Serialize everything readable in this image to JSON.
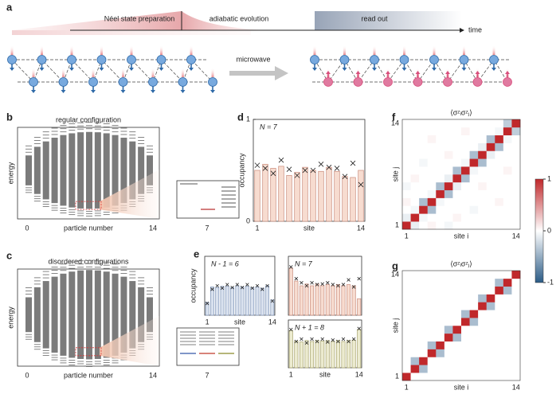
{
  "labels": [
    "a",
    "b",
    "c",
    "d",
    "e",
    "f",
    "g"
  ],
  "timeline": {
    "stages": [
      "Néel state preparation",
      "adiabatic evolution",
      "read out"
    ],
    "axis": "time"
  },
  "microwave": "microwave",
  "spectra": [
    {
      "title": "regular configuration",
      "ylabel": "energy",
      "xlabel": "particle number",
      "xticks": [
        0,
        14
      ],
      "inset_tick": 7
    },
    {
      "title": "disordered configurations",
      "ylabel": "energy",
      "xlabel": "particle number",
      "xticks": [
        0,
        14
      ],
      "inset_tick": 7
    }
  ],
  "chart_data": [
    {
      "type": "bar",
      "label": "N = 7",
      "ylabel": "occupancy",
      "xlabel": "site",
      "ylim": [
        0,
        1
      ],
      "yticks": [
        0,
        1
      ],
      "categories": [
        "1",
        null,
        null,
        null,
        null,
        null,
        null,
        null,
        null,
        null,
        null,
        null,
        null,
        "14"
      ],
      "values": [
        0.5,
        0.56,
        0.52,
        0.54,
        0.45,
        0.48,
        0.53,
        0.5,
        0.49,
        0.53,
        0.49,
        0.44,
        0.43,
        0.5
      ],
      "cross_values": [
        0.55,
        0.52,
        0.47,
        0.6,
        0.51,
        0.45,
        0.5,
        0.5,
        0.56,
        0.53,
        0.52,
        0.44,
        0.57,
        0.36
      ],
      "color": "#f7dcd0",
      "stroke": "#c98a7a"
    },
    {
      "type": "bar",
      "label": "N - 1 = 6",
      "ylabel": "occupancy",
      "xlabel": "site",
      "ylim": [
        0,
        1
      ],
      "categories": [
        "1",
        null,
        null,
        null,
        null,
        null,
        null,
        null,
        null,
        null,
        null,
        null,
        null,
        "14"
      ],
      "values": [
        0.22,
        0.48,
        0.47,
        0.49,
        0.49,
        0.47,
        0.5,
        0.48,
        0.49,
        0.47,
        0.48,
        0.46,
        0.5,
        0.26
      ],
      "cross_values": [
        0.2,
        0.44,
        0.5,
        0.46,
        0.52,
        0.47,
        0.52,
        0.47,
        0.52,
        0.46,
        0.5,
        0.44,
        0.5,
        0.24
      ],
      "color": "#d9e1ee",
      "stroke": "#7f95b8"
    },
    {
      "type": "bar",
      "label": "N = 7",
      "xlabel": null,
      "ylim": [
        0,
        1
      ],
      "categories": [
        null,
        null,
        null,
        null,
        null,
        null,
        null,
        null,
        null,
        null,
        null,
        null,
        null,
        null
      ],
      "values": [
        0.8,
        0.58,
        0.5,
        0.53,
        0.5,
        0.53,
        0.5,
        0.52,
        0.5,
        0.52,
        0.5,
        0.52,
        0.5,
        0.28
      ],
      "cross_values": [
        0.82,
        0.62,
        0.55,
        0.5,
        0.55,
        0.52,
        0.53,
        0.55,
        0.52,
        0.5,
        0.52,
        0.6,
        0.48,
        0.62
      ],
      "color": "#f7dcd0",
      "stroke": "#c98a7a"
    },
    {
      "type": "bar",
      "label": "N + 1 = 8",
      "xlabel": "site",
      "ylim": [
        0,
        1
      ],
      "categories": [
        "1",
        null,
        null,
        null,
        null,
        null,
        null,
        null,
        null,
        null,
        null,
        null,
        null,
        "14"
      ],
      "values": [
        0.78,
        0.56,
        0.54,
        0.57,
        0.55,
        0.57,
        0.56,
        0.57,
        0.55,
        0.57,
        0.55,
        0.57,
        0.58,
        0.8
      ],
      "cross_values": [
        0.8,
        0.55,
        0.6,
        0.52,
        0.6,
        0.55,
        0.6,
        0.54,
        0.58,
        0.55,
        0.6,
        0.55,
        0.6,
        0.82
      ],
      "color": "#ecebd0",
      "stroke": "#a7a36c"
    },
    {
      "type": "heatmap",
      "title": "⟨σᶻᵢσᶻⱼ⟩",
      "xlabel": "site i",
      "ylabel": "site j",
      "categories": [
        "1",
        null,
        null,
        null,
        null,
        null,
        null,
        null,
        null,
        null,
        null,
        null,
        null,
        "14"
      ],
      "zlim": [
        -1,
        1
      ],
      "zticks": [
        -1,
        0,
        1
      ],
      "values": [
        [
          1,
          -0.1,
          0,
          0.05,
          0,
          -0.05,
          0,
          0,
          0,
          0,
          0,
          0,
          0,
          0
        ],
        [
          -0.1,
          1,
          -0.05,
          0,
          0,
          0,
          0.05,
          0,
          0,
          0,
          0,
          0,
          0,
          0
        ],
        [
          0,
          -0.05,
          1,
          -0.4,
          0,
          0,
          0,
          0,
          -0.05,
          0,
          0,
          0,
          0,
          0
        ],
        [
          0.05,
          0,
          -0.4,
          1,
          -0.05,
          0,
          0,
          0,
          0,
          0,
          0,
          0.05,
          0,
          0
        ],
        [
          0,
          0,
          0,
          -0.05,
          1,
          -0.4,
          0,
          0,
          0,
          0,
          0,
          0,
          0,
          0
        ],
        [
          -0.05,
          0,
          0,
          0,
          -0.4,
          1,
          -0.1,
          0,
          0,
          0.05,
          0,
          0,
          0,
          0
        ],
        [
          0,
          0.05,
          0,
          0,
          0,
          -0.1,
          1,
          -0.4,
          0,
          0,
          0,
          0,
          0,
          0
        ],
        [
          0,
          0,
          0,
          0,
          0,
          0,
          -0.4,
          1,
          -0.05,
          0,
          0,
          0,
          0.05,
          0
        ],
        [
          0,
          0,
          -0.05,
          0,
          0,
          0,
          0,
          -0.05,
          1,
          -0.4,
          0,
          0,
          0,
          0
        ],
        [
          0,
          0,
          0,
          0,
          0,
          0.05,
          0,
          0,
          -0.4,
          1,
          -0.1,
          0,
          0,
          0
        ],
        [
          0,
          0,
          0,
          0,
          0,
          0,
          0,
          0,
          0,
          -0.1,
          1,
          -0.4,
          0,
          0
        ],
        [
          0,
          0,
          0,
          0.05,
          0,
          0,
          0,
          0,
          0,
          0,
          -0.4,
          1,
          -0.05,
          0
        ],
        [
          0,
          0,
          0,
          0,
          0,
          0,
          0,
          0.05,
          0,
          0,
          0,
          -0.05,
          1,
          -0.3
        ],
        [
          0,
          0,
          0,
          0,
          0,
          0,
          0,
          0,
          0,
          0,
          0,
          0,
          -0.3,
          1
        ]
      ]
    },
    {
      "type": "heatmap",
      "title": "⟨σᶻᵢσᶻⱼ⟩",
      "xlabel": "site i",
      "ylabel": "site j",
      "categories": [
        "1",
        null,
        null,
        null,
        null,
        null,
        null,
        null,
        null,
        null,
        null,
        null,
        null,
        "14"
      ],
      "zlim": [
        -1,
        1
      ],
      "values": [
        [
          1,
          0,
          0,
          0,
          0,
          0,
          0,
          0,
          0,
          0,
          0,
          0,
          0,
          0
        ],
        [
          0,
          1,
          -0.4,
          0,
          0,
          0,
          0,
          0,
          0,
          0,
          0,
          0,
          0,
          0
        ],
        [
          0,
          -0.4,
          1,
          0,
          0,
          0,
          0,
          0,
          0,
          0,
          0,
          0,
          0,
          0
        ],
        [
          0,
          0,
          0,
          1,
          -0.4,
          0,
          0,
          0,
          0,
          0,
          0,
          0,
          0,
          0
        ],
        [
          0,
          0,
          0,
          -0.4,
          1,
          0,
          0,
          0,
          0,
          0,
          0,
          0,
          0,
          0
        ],
        [
          0,
          0,
          0,
          0,
          0,
          1,
          -0.4,
          0,
          0,
          0,
          0,
          0,
          0,
          0
        ],
        [
          0,
          0,
          0,
          0,
          0,
          -0.4,
          1,
          0,
          0,
          0,
          0,
          0,
          0,
          0
        ],
        [
          0,
          0,
          0,
          0,
          0,
          0,
          0,
          1,
          -0.4,
          0,
          0,
          0,
          0,
          0
        ],
        [
          0,
          0,
          0,
          0,
          0,
          0,
          0,
          -0.4,
          1,
          0,
          0,
          0,
          0,
          0
        ],
        [
          0,
          0,
          0,
          0,
          0,
          0,
          0,
          0,
          0,
          1,
          -0.4,
          0,
          0,
          0
        ],
        [
          0,
          0,
          0,
          0,
          0,
          0,
          0,
          0,
          0,
          -0.4,
          1,
          0,
          0,
          0
        ],
        [
          0,
          0,
          0,
          0,
          0,
          0,
          0,
          0,
          0,
          0,
          0,
          1,
          -0.4,
          0
        ],
        [
          0,
          0,
          0,
          0,
          0,
          0,
          0,
          0,
          0,
          0,
          0,
          -0.4,
          1,
          0
        ],
        [
          0,
          0,
          0,
          0,
          0,
          0,
          0,
          0,
          0,
          0,
          0,
          0,
          0,
          1
        ]
      ]
    }
  ]
}
